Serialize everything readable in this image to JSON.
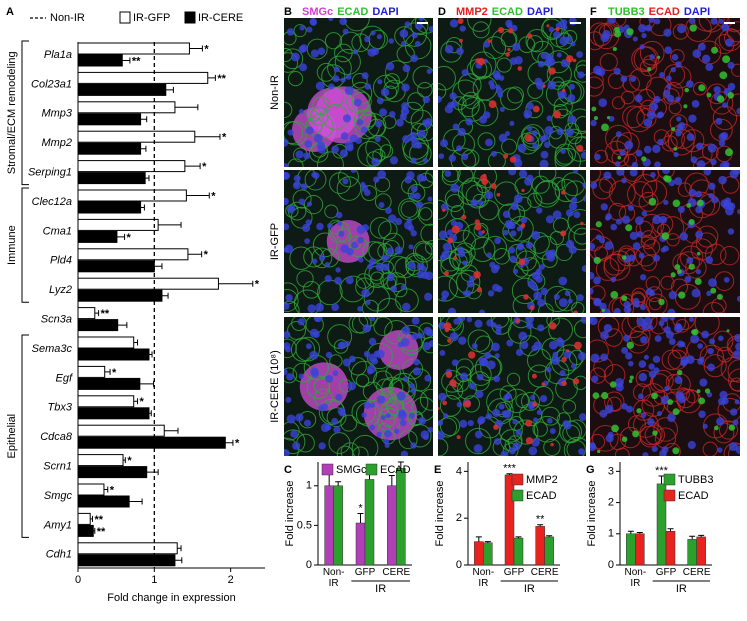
{
  "chart_data": [
    {
      "type": "bar",
      "orientation": "horizontal",
      "panel": "A",
      "categories": [
        "Pla1a",
        "Col23a1",
        "Mmp3",
        "Mmp2",
        "Serping1",
        "Clec12a",
        "Cma1",
        "Pld4",
        "Lyz2",
        "Scn3a",
        "Sema3c",
        "Egf",
        "Tbx3",
        "Cdca8",
        "Scrn1",
        "Smgc",
        "Amy1",
        "Cdh1"
      ],
      "groups": [
        {
          "label": "Stromal/ECM remodeling",
          "first": 0,
          "last": 4
        },
        {
          "label": "Immune",
          "first": 5,
          "last": 8
        },
        {
          "label": "Epithelial",
          "first": 10,
          "last": 16
        }
      ],
      "reference_line": {
        "name": "Non-IR",
        "value": 1
      },
      "series": [
        {
          "name": "IR-GFP",
          "color": "#ffffff",
          "values": [
            1.46,
            1.7,
            1.27,
            1.53,
            1.4,
            1.42,
            1.05,
            1.44,
            1.84,
            0.22,
            0.73,
            0.35,
            0.73,
            1.13,
            0.59,
            0.34,
            0.16,
            1.3
          ],
          "errors": [
            0.17,
            0.1,
            0.3,
            0.33,
            0.2,
            0.3,
            0.3,
            0.18,
            0.45,
            0.05,
            0.05,
            0.07,
            0.05,
            0.18,
            0.03,
            0.05,
            0.03,
            0.05
          ],
          "significance": [
            "*",
            "**",
            null,
            "*",
            "*",
            "*",
            null,
            "*",
            "*",
            "**",
            null,
            "*",
            "*",
            null,
            "*",
            "*",
            "**",
            null
          ]
        },
        {
          "name": "IR-CERE",
          "color": "#000000",
          "values": [
            0.58,
            1.15,
            0.82,
            0.82,
            0.88,
            0.82,
            0.51,
            1.0,
            1.1,
            0.52,
            0.93,
            0.81,
            0.93,
            1.93,
            0.9,
            0.67,
            0.2,
            1.27
          ],
          "errors": [
            0.1,
            0.1,
            0.08,
            0.07,
            0.05,
            0.05,
            0.1,
            0.1,
            0.08,
            0.12,
            0.04,
            0.18,
            0.03,
            0.1,
            0.15,
            0.17,
            0.02,
            0.09
          ],
          "significance": [
            "**",
            null,
            null,
            null,
            null,
            null,
            "*",
            null,
            null,
            null,
            null,
            null,
            null,
            "*",
            null,
            null,
            "**",
            null
          ]
        }
      ],
      "xlabel": "Fold change in expression",
      "xlim": [
        0,
        2.45
      ],
      "xticks": [
        0,
        1,
        2
      ]
    },
    {
      "type": "bar",
      "panel": "C",
      "ylabel": "Fold increase",
      "categories": [
        "Non-IR",
        "GFP",
        "CERE"
      ],
      "category_group": {
        "label": "IR",
        "first": 1,
        "last": 2
      },
      "series": [
        {
          "name": "SMGc",
          "color": "#b23fb8",
          "values": [
            1.0,
            0.53,
            1.0
          ],
          "errors": [
            0.2,
            0.12,
            0.13
          ],
          "significance": [
            null,
            "*",
            null
          ]
        },
        {
          "name": "ECAD",
          "color": "#2ca02c",
          "values": [
            1.0,
            1.08,
            1.22
          ],
          "errors": [
            0.05,
            0.12,
            0.08
          ],
          "significance": [
            null,
            null,
            null
          ]
        }
      ],
      "ylim": [
        0,
        1.3
      ],
      "yticks": [
        0,
        {
          "value": 0.5,
          "label": "0.5"
        },
        1
      ],
      "legend": "top"
    },
    {
      "type": "bar",
      "panel": "E",
      "ylabel": "Fold increase",
      "categories": [
        "Non-IR",
        "GFP",
        "CERE"
      ],
      "category_group": {
        "label": "IR",
        "first": 1,
        "last": 2
      },
      "series": [
        {
          "name": "MMP2",
          "color": "#e8221e",
          "values": [
            1.0,
            3.85,
            1.65
          ],
          "errors": [
            0.2,
            0.05,
            0.07
          ],
          "significance": [
            null,
            "***",
            "**"
          ]
        },
        {
          "name": "ECAD",
          "color": "#2ca02c",
          "values": [
            0.95,
            1.15,
            1.2
          ],
          "errors": [
            0.05,
            0.05,
            0.05
          ],
          "significance": [
            null,
            null,
            null
          ]
        }
      ],
      "ylim": [
        0,
        4.4
      ],
      "yticks": [
        0,
        2,
        4
      ],
      "legend": "upper right"
    },
    {
      "type": "bar",
      "panel": "G",
      "ylabel": "Fold increase",
      "categories": [
        "Non-IR",
        "GFP",
        "CERE"
      ],
      "category_group": {
        "label": "IR",
        "first": 1,
        "last": 2
      },
      "series": [
        {
          "name": "TUBB3",
          "color": "#2ca02c",
          "values": [
            1.0,
            2.6,
            0.82
          ],
          "errors": [
            0.08,
            0.25,
            0.1
          ],
          "significance": [
            null,
            "***",
            null
          ]
        },
        {
          "name": "ECAD",
          "color": "#e8221e",
          "values": [
            1.0,
            1.08,
            0.9
          ],
          "errors": [
            0.04,
            0.08,
            0.05
          ],
          "significance": [
            null,
            null,
            null
          ]
        }
      ],
      "ylim": [
        0,
        3.3
      ],
      "yticks": [
        0,
        1,
        2,
        3
      ],
      "legend": "upper right"
    }
  ],
  "figure": {
    "panels": [
      "B",
      "D",
      "F"
    ],
    "headers": [
      [
        {
          "text": "SMGc",
          "color": "#d040d0"
        },
        {
          "text": "ECAD",
          "color": "#30c030"
        },
        {
          "text": "DAPI",
          "color": "#2020d0"
        }
      ],
      [
        {
          "text": "MMP2",
          "color": "#e02020"
        },
        {
          "text": "ECAD",
          "color": "#30c030"
        },
        {
          "text": "DAPI",
          "color": "#2020d0"
        }
      ],
      [
        {
          "text": "TUBB3",
          "color": "#30c030"
        },
        {
          "text": "ECAD",
          "color": "#e02020"
        },
        {
          "text": "DAPI",
          "color": "#2020d0"
        }
      ]
    ],
    "row_labels": [
      "Non-IR",
      "IR-GFP",
      "IR-CERE (10⁸)"
    ]
  }
}
